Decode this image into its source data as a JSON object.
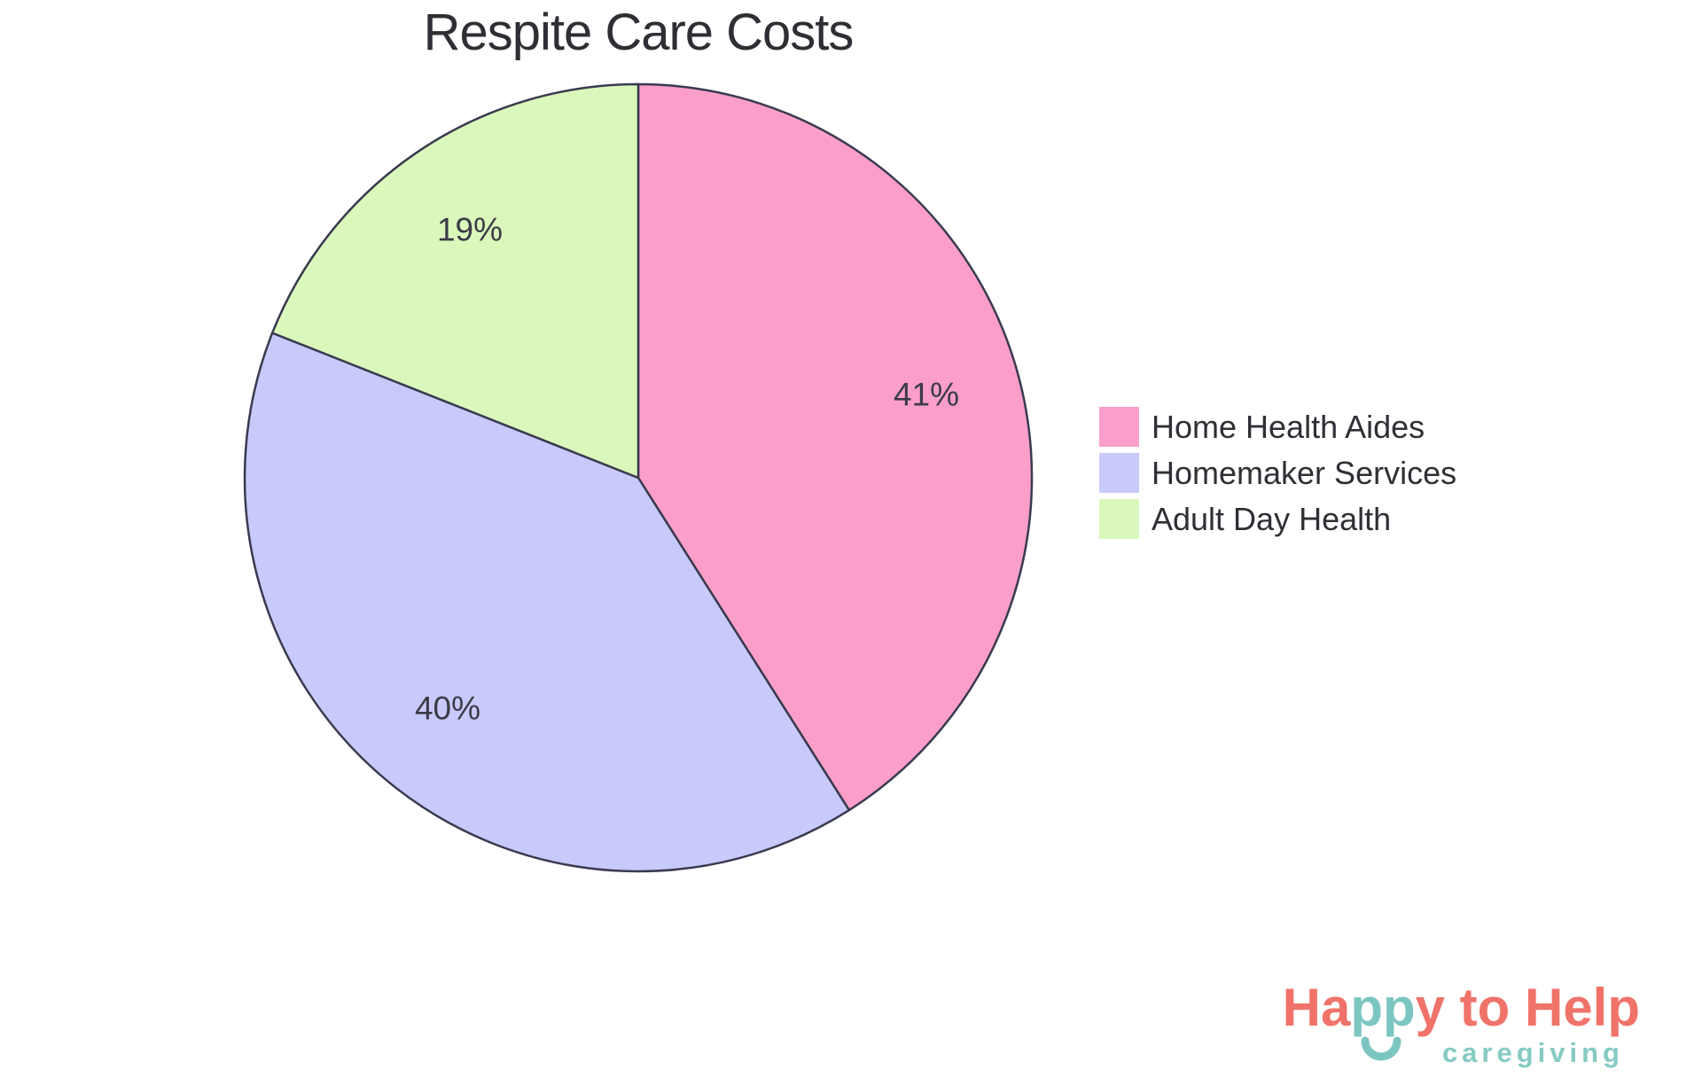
{
  "page": {
    "background": "#FFFFFF"
  },
  "chart_data": {
    "type": "pie",
    "title": "Respite Care Costs",
    "categories": [
      "Home Health Aides",
      "Homemaker Services",
      "Adult Day Health"
    ],
    "values": [
      41,
      40,
      19
    ],
    "slice_labels": [
      "41%",
      "40%",
      "19%"
    ],
    "colors": [
      "#FB9FCA",
      "#C9CAFC",
      "#DBF8BC"
    ],
    "stroke_color": "#3A3A50",
    "label_color": "#3B3B47",
    "start_angle": "12 o'clock",
    "direction": "clockwise",
    "legend_position": "right"
  },
  "legend": {
    "items": [
      {
        "label": "Home Health Aides",
        "color": "#FB9FCA"
      },
      {
        "label": "Homemaker Services",
        "color": "#C9CAFC"
      },
      {
        "label": "Adult Day Health",
        "color": "#DBF8BC"
      }
    ]
  },
  "watermark": {
    "brand_segments": [
      {
        "text": "Ha",
        "color": "#F0736A"
      },
      {
        "text": "pp",
        "color": "#7CC6C1"
      },
      {
        "text": "y to Help",
        "color": "#F0736A"
      }
    ],
    "tagline": "caregiving",
    "tagline_color": "#85CBC4",
    "smile_color": "#7CC6C1"
  }
}
